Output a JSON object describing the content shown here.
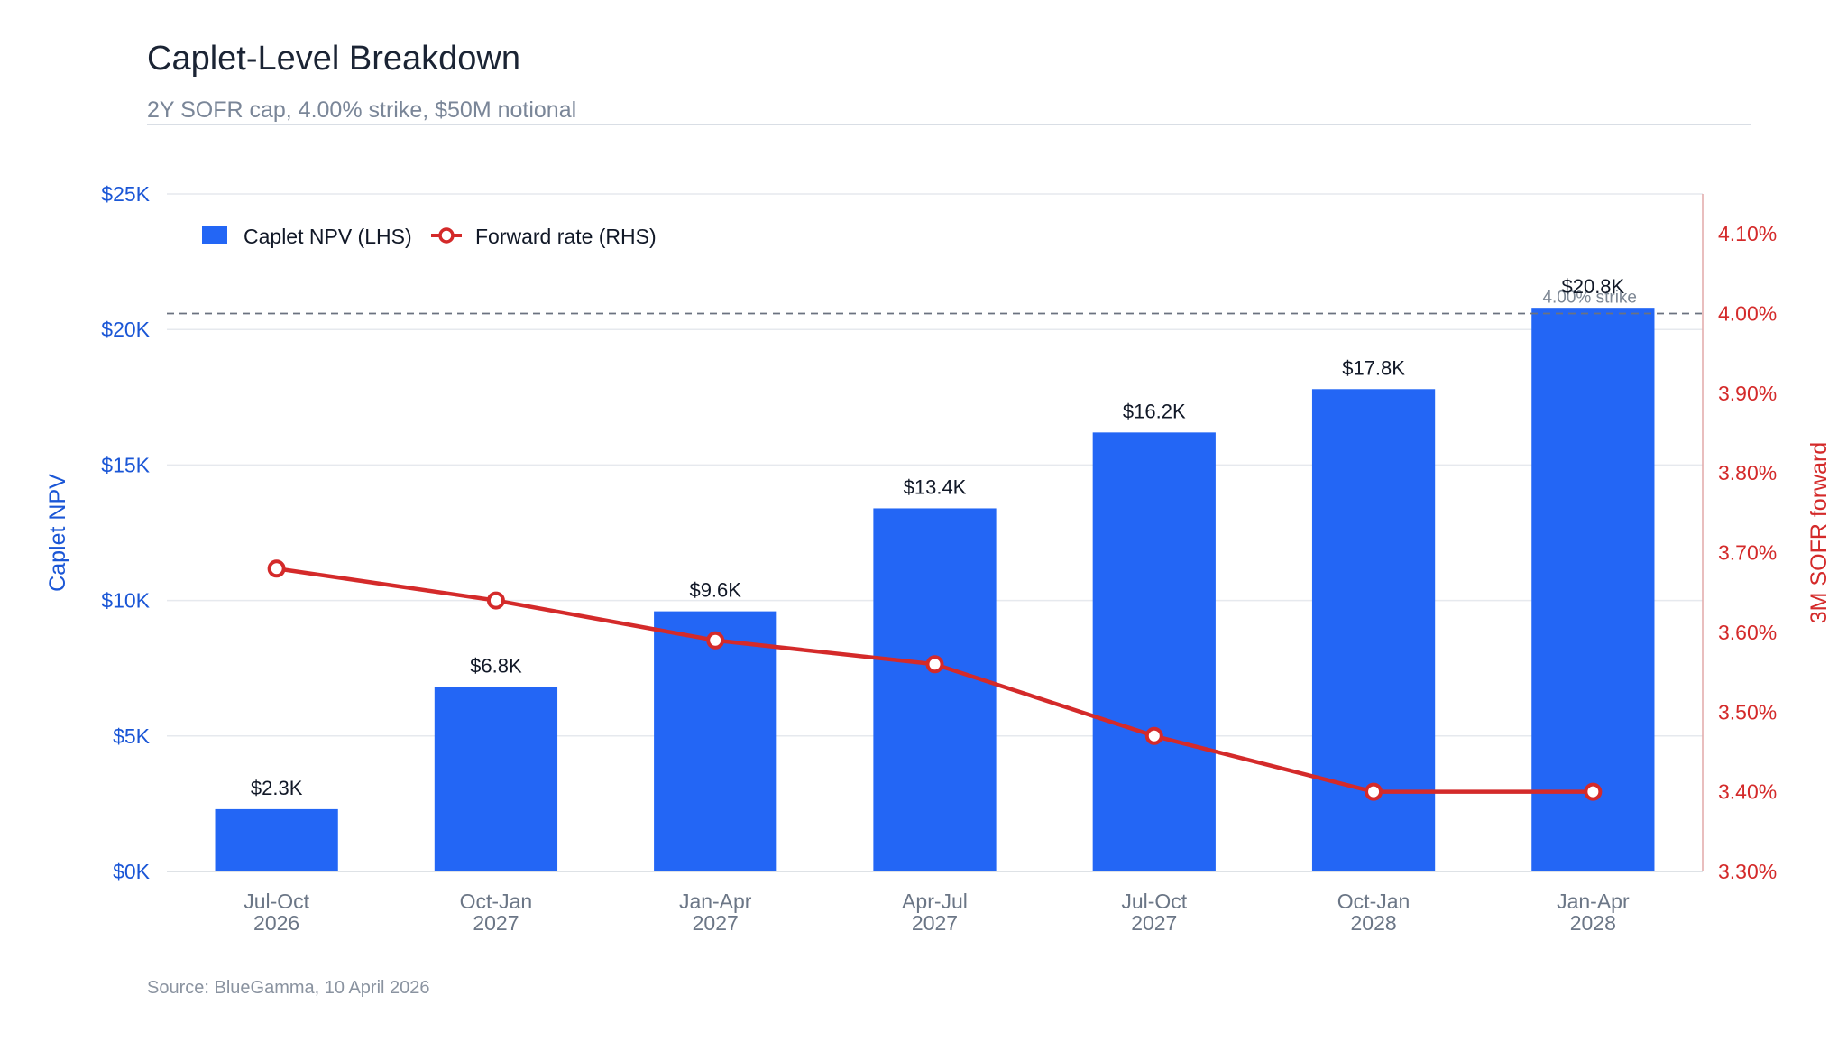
{
  "header": {
    "title": "Caplet-Level Breakdown",
    "subtitle": "2Y SOFR cap, 4.00% strike, $50M notional"
  },
  "footer": {
    "source": "Source: BlueGamma, 10 April 2026"
  },
  "colors": {
    "bar": "#2366f5",
    "line": "#d42a2a",
    "left_axis": "#1a56d6",
    "right_axis": "#d42a2a",
    "grid": "#e6e9ee",
    "strike": "#6b7280",
    "tick_label": "#6b7686"
  },
  "chart_data": {
    "type": "bar+line",
    "categories": [
      [
        "Jul-Oct",
        "2026"
      ],
      [
        "Oct-Jan",
        "2027"
      ],
      [
        "Jan-Apr",
        "2027"
      ],
      [
        "Apr-Jul",
        "2027"
      ],
      [
        "Jul-Oct",
        "2027"
      ],
      [
        "Oct-Jan",
        "2028"
      ],
      [
        "Jan-Apr",
        "2028"
      ]
    ],
    "series": [
      {
        "name": "Caplet NPV (LHS)",
        "type": "bar",
        "axis": "left",
        "values": [
          2.3,
          6.8,
          9.6,
          13.4,
          16.2,
          17.8,
          20.8
        ],
        "labels": [
          "$2.3K",
          "$6.8K",
          "$9.6K",
          "$13.4K",
          "$16.2K",
          "$17.8K",
          "$20.8K"
        ]
      },
      {
        "name": "Forward rate (RHS)",
        "type": "line",
        "axis": "right",
        "values": [
          3.68,
          3.64,
          3.59,
          3.56,
          3.47,
          3.4,
          3.4
        ]
      }
    ],
    "left_axis": {
      "label": "Caplet NPV",
      "range": [
        0,
        25
      ],
      "ticks": [
        0,
        5,
        10,
        15,
        20,
        25
      ],
      "tick_labels": [
        "$0K",
        "$5K",
        "$10K",
        "$15K",
        "$20K",
        "$25K"
      ]
    },
    "right_axis": {
      "label": "3M SOFR forward",
      "range": [
        3.3,
        4.15
      ],
      "ticks": [
        3.3,
        3.4,
        3.5,
        3.6,
        3.7,
        3.8,
        3.9,
        4.0,
        4.1
      ],
      "tick_labels": [
        "3.30%",
        "3.40%",
        "3.50%",
        "3.60%",
        "3.70%",
        "3.80%",
        "3.90%",
        "4.00%",
        "4.10%"
      ]
    },
    "reference_line": {
      "axis": "right",
      "value": 4.0,
      "label": "4.00% strike",
      "style": "dashed"
    },
    "legend": {
      "position": "top-left",
      "items": [
        "Caplet NPV (LHS)",
        "Forward rate (RHS)"
      ]
    },
    "grid": true
  }
}
